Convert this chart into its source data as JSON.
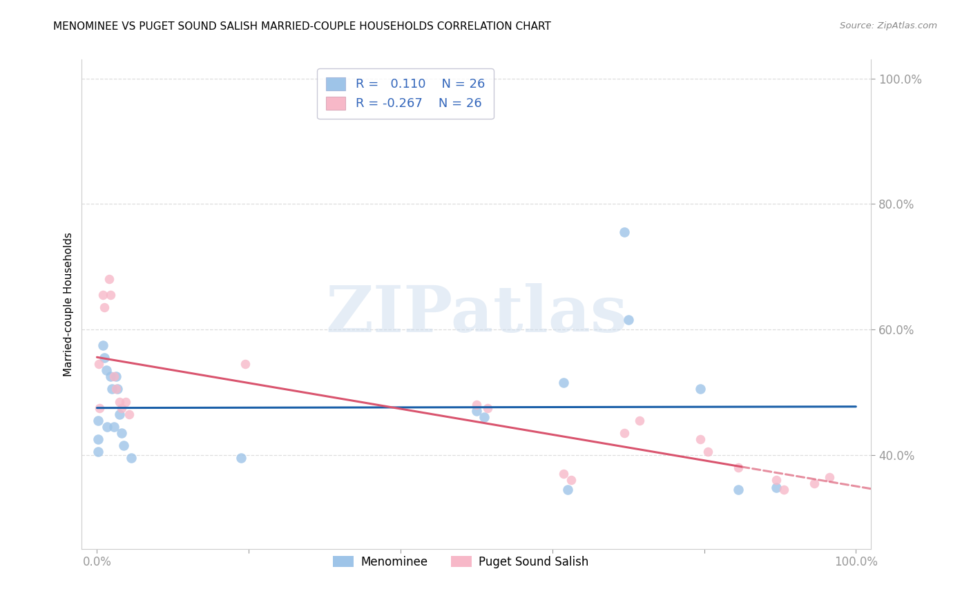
{
  "title": "MENOMINEE VS PUGET SOUND SALISH MARRIED-COUPLE HOUSEHOLDS CORRELATION CHART",
  "source": "Source: ZipAtlas.com",
  "ylabel": "Married-couple Households",
  "legend_label1": "Menominee",
  "legend_label2": "Puget Sound Salish",
  "blue_color": "#9ec4e8",
  "pink_color": "#f7b8c8",
  "blue_line_color": "#1a5fa8",
  "pink_line_color": "#d9546e",
  "menominee_x": [
    0.001,
    0.001,
    0.001,
    0.008,
    0.01,
    0.012,
    0.013,
    0.018,
    0.02,
    0.022,
    0.025,
    0.027,
    0.03,
    0.032,
    0.035,
    0.045,
    0.19,
    0.5,
    0.51,
    0.615,
    0.62,
    0.695,
    0.7,
    0.795,
    0.845,
    0.895
  ],
  "menominee_y": [
    0.455,
    0.425,
    0.405,
    0.575,
    0.555,
    0.535,
    0.445,
    0.525,
    0.505,
    0.445,
    0.525,
    0.505,
    0.465,
    0.435,
    0.415,
    0.395,
    0.395,
    0.47,
    0.46,
    0.515,
    0.345,
    0.755,
    0.615,
    0.505,
    0.345,
    0.348
  ],
  "puget_x": [
    0.002,
    0.003,
    0.008,
    0.01,
    0.016,
    0.018,
    0.022,
    0.025,
    0.03,
    0.032,
    0.038,
    0.042,
    0.195,
    0.5,
    0.515,
    0.615,
    0.625,
    0.695,
    0.715,
    0.795,
    0.805,
    0.845,
    0.895,
    0.905,
    0.945,
    0.965
  ],
  "puget_y": [
    0.545,
    0.475,
    0.655,
    0.635,
    0.68,
    0.655,
    0.525,
    0.505,
    0.485,
    0.475,
    0.485,
    0.465,
    0.545,
    0.48,
    0.475,
    0.37,
    0.36,
    0.435,
    0.455,
    0.425,
    0.405,
    0.38,
    0.36,
    0.345,
    0.355,
    0.365
  ],
  "xlim": [
    -0.02,
    1.02
  ],
  "ylim": [
    0.25,
    1.03
  ],
  "yticks": [
    0.4,
    0.6,
    0.8,
    1.0
  ],
  "ytick_labels": [
    "40.0%",
    "60.0%",
    "80.0%",
    "100.0%"
  ],
  "xtick_left_label": "0.0%",
  "xtick_right_label": "100.0%",
  "watermark_text": "ZIPatlas",
  "blue_scatter_size": 110,
  "pink_scatter_size": 95,
  "blue_R": 0.11,
  "pink_R": -0.267,
  "N": 26,
  "grid_color": "#dddddd",
  "spine_color": "#cccccc"
}
